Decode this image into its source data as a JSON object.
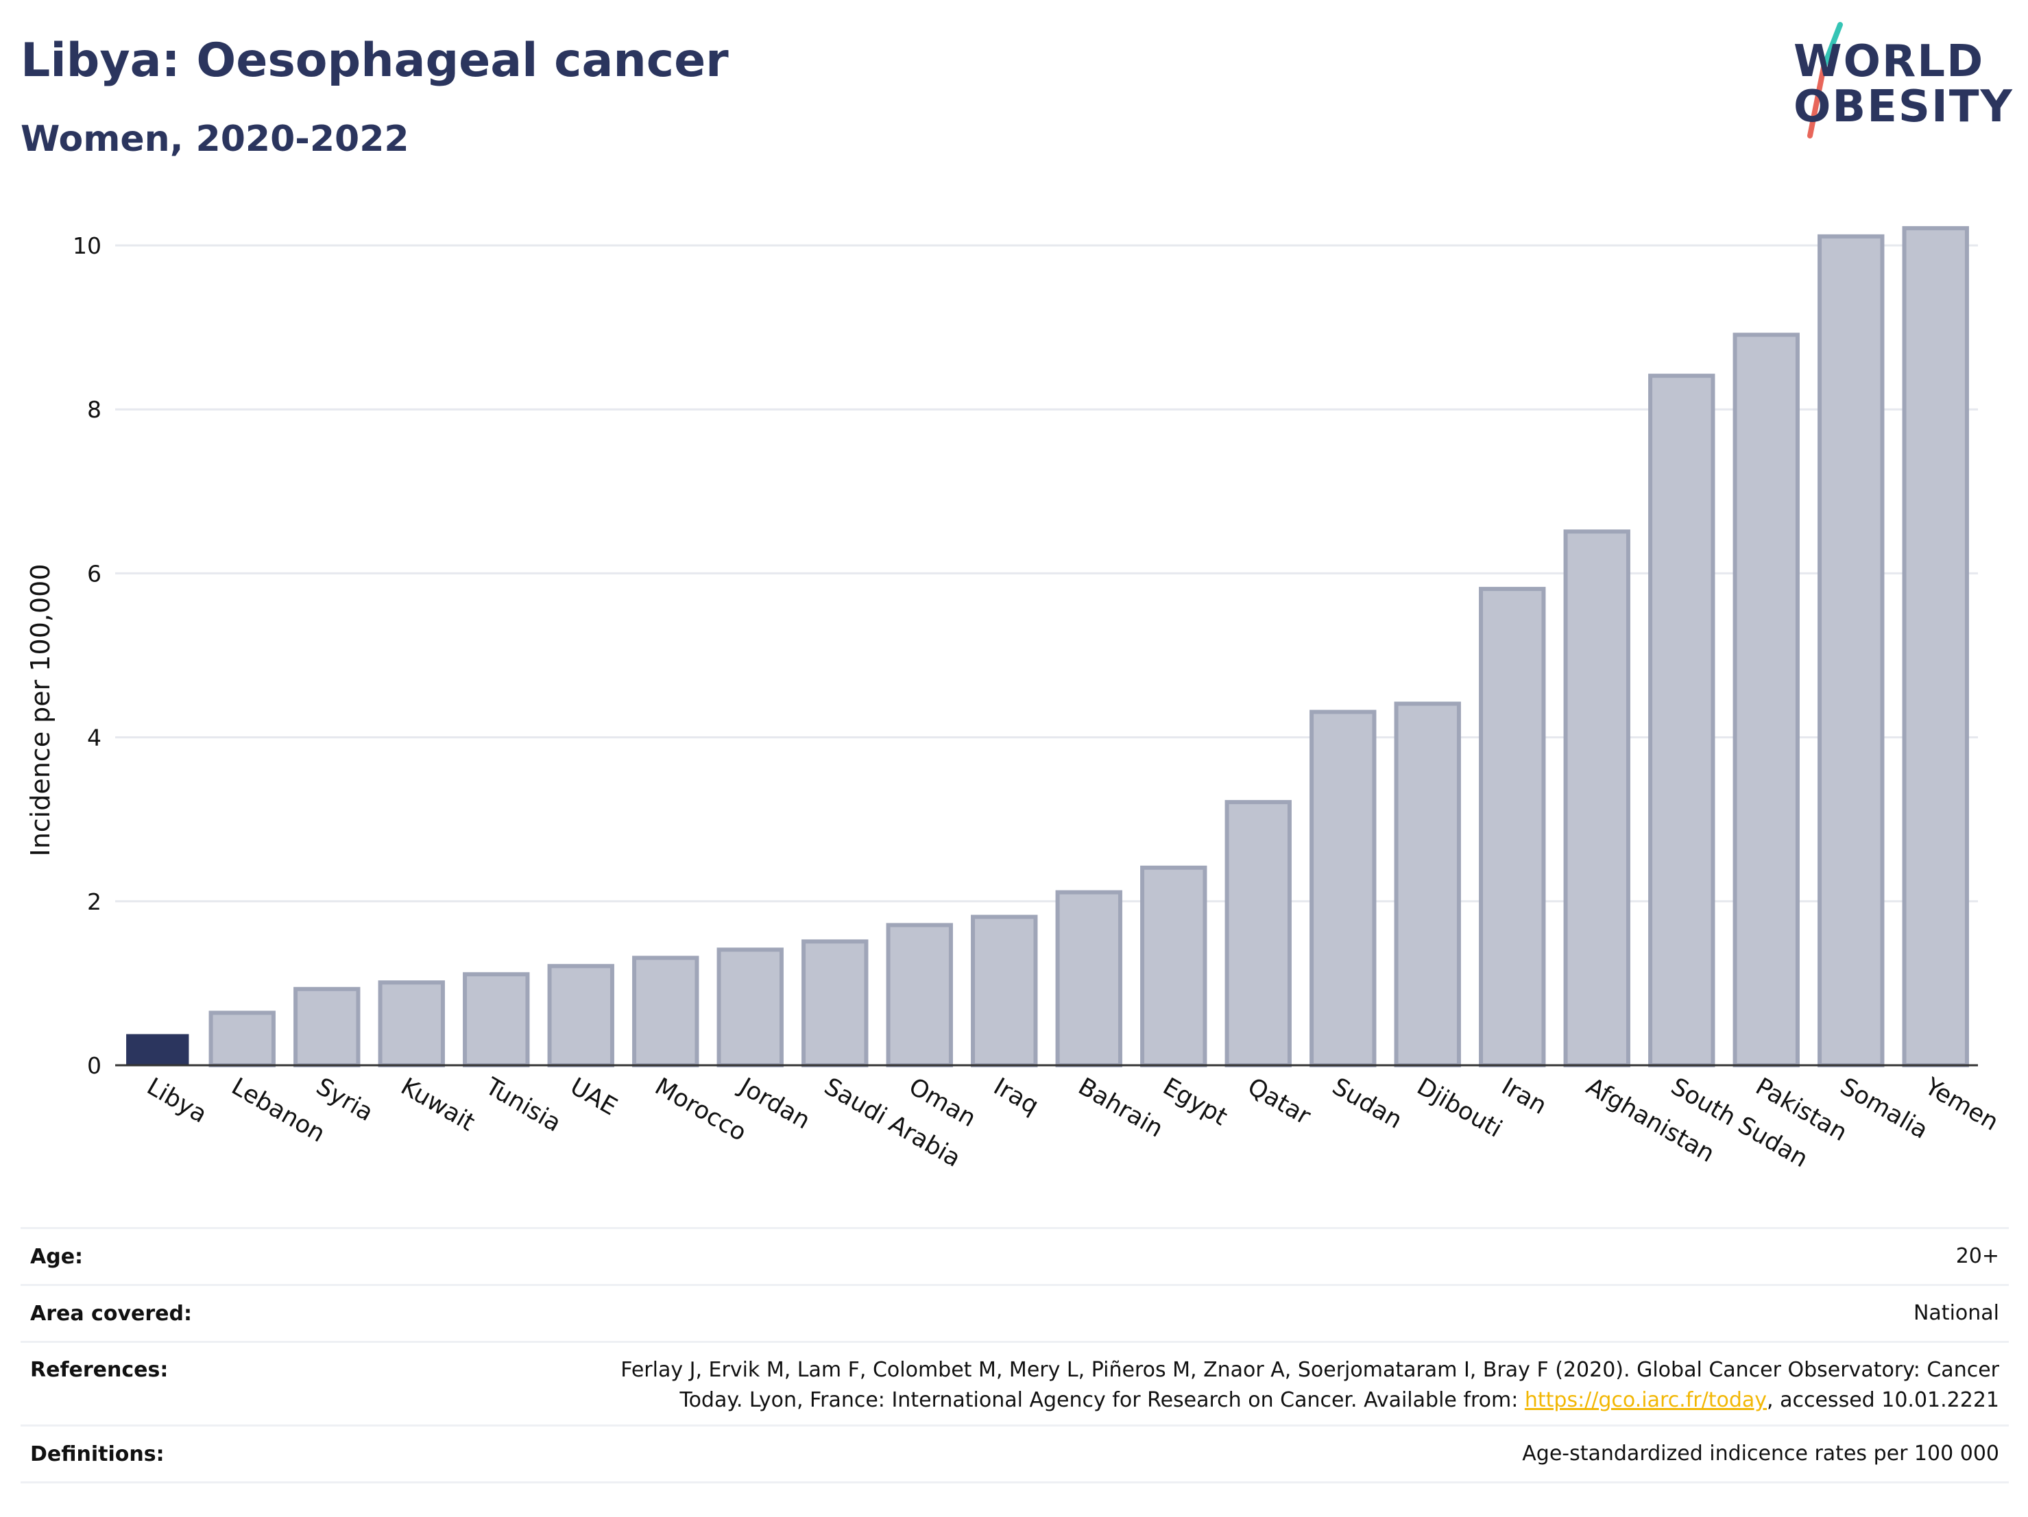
{
  "header": {
    "title": "Libya: Oesophageal cancer",
    "subtitle": "Women, 2020-2022"
  },
  "logo": {
    "line1": "WORLD",
    "line2": "OBESITY",
    "slash_colors": [
      "#35c4b5",
      "#e8665a"
    ]
  },
  "colors": {
    "highlight": "#2b355e",
    "bar_fill": "#bfc3d0",
    "bar_stroke": "#9fa5b8",
    "grid": "#e6e8ee",
    "link": "#f2b705"
  },
  "chart_data": {
    "type": "bar",
    "ylabel": "Incidence per 100,000",
    "ylim": [
      0,
      10.6
    ],
    "yticks": [
      0,
      2,
      4,
      6,
      8,
      10
    ],
    "grid": true,
    "highlight_category": "Libya",
    "categories": [
      "Libya",
      "Lebanon",
      "Syria",
      "Kuwait",
      "Tunisia",
      "UAE",
      "Morocco",
      "Jordan",
      "Saudi Arabia",
      "Oman",
      "Iraq",
      "Bahrain",
      "Egypt",
      "Qatar",
      "Sudan",
      "Djibouti",
      "Iran",
      "Afghanistan",
      "South Sudan",
      "Pakistan",
      "Somalia",
      "Yemen"
    ],
    "values": [
      0.38,
      0.64,
      0.93,
      1.01,
      1.11,
      1.21,
      1.31,
      1.41,
      1.51,
      1.71,
      1.81,
      2.11,
      2.41,
      3.21,
      4.31,
      4.41,
      5.81,
      6.51,
      8.41,
      8.91,
      10.11,
      10.21
    ]
  },
  "table": {
    "age_label": "Age:",
    "age_value": "20+",
    "area_label": "Area covered:",
    "area_value": "National",
    "references_label": "References:",
    "references_line1": "Ferlay J, Ervik M, Lam F, Colombet M, Mery L, Piñeros M, Znaor A, Soerjomataram I, Bray F (2020). Global Cancer Observatory: Cancer",
    "references_line2_pre": "Today. Lyon, France: International Agency for Research on Cancer. Available from: ",
    "references_link": "https://gco.iarc.fr/today",
    "references_line2_post": ", accessed 10.01.2221",
    "definitions_label": "Definitions:",
    "definitions_value": "Age-standardized indicence rates per 100 000"
  }
}
